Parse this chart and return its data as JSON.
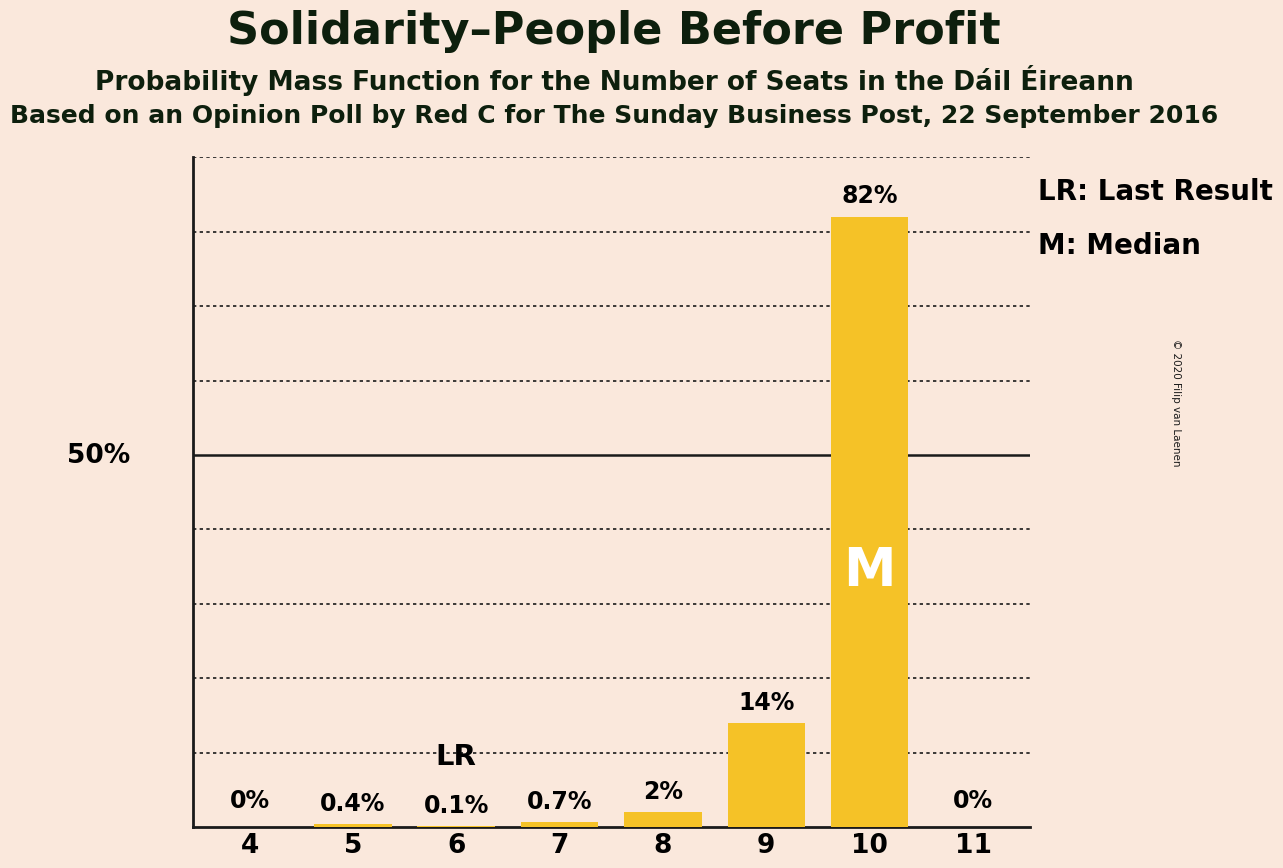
{
  "title": "Solidarity–People Before Profit",
  "subtitle1": "Probability Mass Function for the Number of Seats in the Dáil Éireann",
  "subtitle2": "Based on an Opinion Poll by Red C for The Sunday Business Post, 22 September 2016",
  "copyright": "© 2020 Filip van Laenen",
  "categories": [
    4,
    5,
    6,
    7,
    8,
    9,
    10,
    11
  ],
  "values": [
    0.0,
    0.4,
    0.1,
    0.7,
    2.0,
    14.0,
    82.0,
    0.0
  ],
  "labels": [
    "0%",
    "0.4%",
    "0.1%",
    "0.7%",
    "2%",
    "14%",
    "82%",
    "0%"
  ],
  "bar_color": "#F5C227",
  "background_color": "#FAE8DC",
  "last_result_seat": 6,
  "median_seat": 10,
  "ylim": [
    0,
    90
  ],
  "ylabel_50_label": "50%",
  "title_fontsize": 32,
  "subtitle1_fontsize": 19,
  "subtitle2_fontsize": 18,
  "label_fontsize": 17,
  "tick_fontsize": 19,
  "annotation_fontsize": 21,
  "legend_fontsize": 20,
  "median_label_fontsize": 38
}
